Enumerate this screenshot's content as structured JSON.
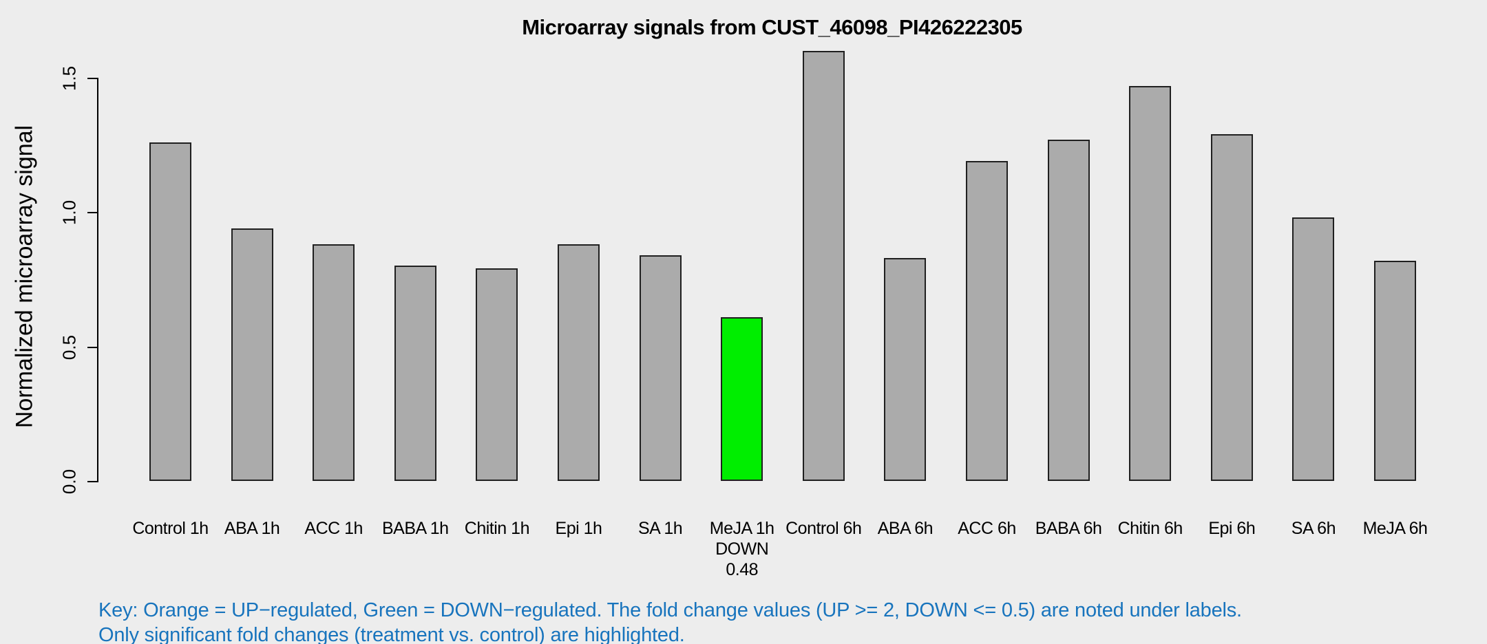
{
  "title": "Microarray signals from CUST_46098_PI426222305",
  "key": {
    "line1": "Key: Orange = UP−regulated, Green = DOWN−regulated. The fold change values (UP >= 2, DOWN <= 0.5) are noted under labels.",
    "line2": "Only significant fold changes (treatment vs. control) are highlighted."
  },
  "colors": {
    "background": "#EDEDED",
    "bar_default": "#ABABAB",
    "bar_border": "#1F1F1F",
    "down_regulated_green": "#00EE00",
    "axis": "#000000",
    "key_text": "#1874BD"
  },
  "chart_data": {
    "type": "bar",
    "title": "Microarray signals from CUST_46098_PI426222305",
    "xlabel": "",
    "ylabel": "Normalized microarray signal",
    "ylim": [
      0,
      1.6
    ],
    "yticks": [
      0.0,
      0.5,
      1.0,
      1.5
    ],
    "ytick_labels": [
      "0.0",
      "0.5",
      "1.0",
      "1.5"
    ],
    "grid": false,
    "legend_position": "none",
    "categories": [
      "Control 1h",
      "ABA 1h",
      "ACC 1h",
      "BABA 1h",
      "Chitin 1h",
      "Epi 1h",
      "SA 1h",
      "MeJA 1h",
      "Control 6h",
      "ABA 6h",
      "ACC 6h",
      "BABA 6h",
      "Chitin 6h",
      "Epi 6h",
      "SA 6h",
      "MeJA 6h"
    ],
    "values": [
      1.26,
      0.94,
      0.88,
      0.8,
      0.79,
      0.88,
      0.84,
      0.61,
      1.6,
      0.83,
      1.19,
      1.27,
      1.47,
      1.29,
      0.98,
      0.82
    ],
    "bars": [
      {
        "label": "Control 1h",
        "value": 1.26,
        "color": "gray",
        "annotation": []
      },
      {
        "label": "ABA 1h",
        "value": 0.94,
        "color": "gray",
        "annotation": []
      },
      {
        "label": "ACC 1h",
        "value": 0.88,
        "color": "gray",
        "annotation": []
      },
      {
        "label": "BABA 1h",
        "value": 0.8,
        "color": "gray",
        "annotation": []
      },
      {
        "label": "Chitin 1h",
        "value": 0.79,
        "color": "gray",
        "annotation": []
      },
      {
        "label": "Epi 1h",
        "value": 0.88,
        "color": "gray",
        "annotation": []
      },
      {
        "label": "SA 1h",
        "value": 0.84,
        "color": "gray",
        "annotation": []
      },
      {
        "label": "MeJA 1h",
        "value": 0.61,
        "color": "green",
        "annotation": [
          "DOWN",
          "0.48"
        ]
      },
      {
        "label": "Control 6h",
        "value": 1.6,
        "color": "gray",
        "annotation": []
      },
      {
        "label": "ABA 6h",
        "value": 0.83,
        "color": "gray",
        "annotation": []
      },
      {
        "label": "ACC 6h",
        "value": 1.19,
        "color": "gray",
        "annotation": []
      },
      {
        "label": "BABA 6h",
        "value": 1.27,
        "color": "gray",
        "annotation": []
      },
      {
        "label": "Chitin 6h",
        "value": 1.47,
        "color": "gray",
        "annotation": []
      },
      {
        "label": "Epi 6h",
        "value": 1.29,
        "color": "gray",
        "annotation": []
      },
      {
        "label": "SA 6h",
        "value": 0.98,
        "color": "gray",
        "annotation": []
      },
      {
        "label": "MeJA 6h",
        "value": 0.82,
        "color": "gray",
        "annotation": []
      }
    ]
  }
}
